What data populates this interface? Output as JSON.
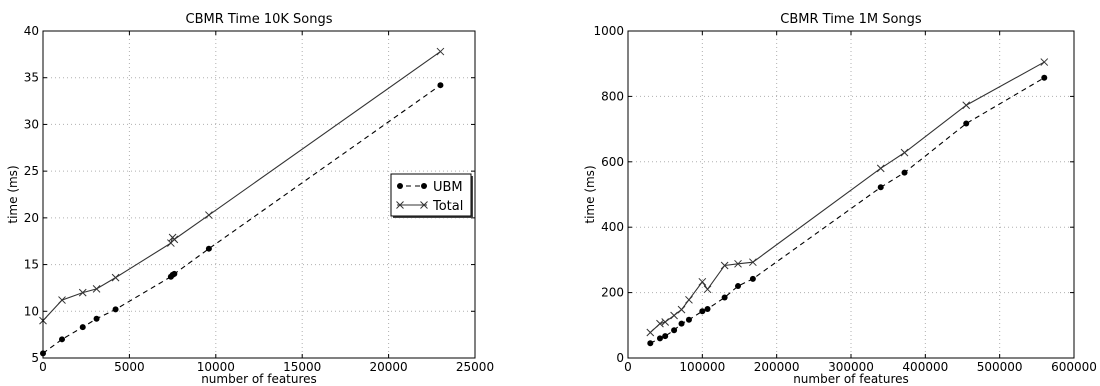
{
  "chart_data": [
    {
      "type": "line",
      "title": "CBMR Time 10K Songs",
      "xlabel": "number of features",
      "ylabel": "time (ms)",
      "xlim": [
        0,
        25000
      ],
      "ylim": [
        5,
        40
      ],
      "xticks": [
        0,
        5000,
        10000,
        15000,
        20000,
        25000
      ],
      "yticks": [
        5,
        10,
        15,
        20,
        25,
        30,
        35,
        40
      ],
      "grid": true,
      "legend": "center-right",
      "series": [
        {
          "name": "UBM",
          "style": "dashed",
          "marker": "dot",
          "color": "#000000",
          "x": [
            0,
            1100,
            2300,
            3100,
            4200,
            7400,
            7500,
            7600,
            9600,
            23000
          ],
          "y": [
            5.5,
            7.0,
            8.3,
            9.2,
            10.2,
            13.7,
            13.9,
            14.0,
            16.7,
            34.2
          ]
        },
        {
          "name": "Total",
          "style": "solid",
          "marker": "x",
          "color": "#333333",
          "x": [
            0,
            1100,
            2300,
            3100,
            4200,
            7400,
            7500,
            7600,
            9600,
            23000
          ],
          "y": [
            9.0,
            11.2,
            12.0,
            12.4,
            13.6,
            17.3,
            17.9,
            17.7,
            20.3,
            37.8
          ]
        }
      ]
    },
    {
      "type": "line",
      "title": "CBMR Time 1M Songs",
      "xlabel": "number of features",
      "ylabel": "time (ms)",
      "xlim": [
        0,
        600000
      ],
      "ylim": [
        0,
        1000
      ],
      "xticks": [
        0,
        100000,
        200000,
        300000,
        400000,
        500000,
        600000
      ],
      "yticks": [
        0,
        200,
        400,
        600,
        800,
        1000
      ],
      "grid": true,
      "series": [
        {
          "name": "UBM",
          "style": "dashed",
          "marker": "dot",
          "color": "#000000",
          "x": [
            30000,
            43000,
            50000,
            62000,
            72000,
            82000,
            100000,
            107000,
            130000,
            148000,
            168000,
            340000,
            372000,
            455000,
            560000
          ],
          "y": [
            45,
            60,
            67,
            85,
            105,
            117,
            143,
            150,
            185,
            220,
            242,
            522,
            567,
            717,
            857
          ]
        },
        {
          "name": "Total",
          "style": "solid",
          "marker": "x",
          "color": "#333333",
          "x": [
            30000,
            43000,
            50000,
            62000,
            72000,
            82000,
            100000,
            107000,
            130000,
            148000,
            168000,
            340000,
            372000,
            455000,
            560000
          ],
          "y": [
            78,
            105,
            110,
            130,
            148,
            178,
            233,
            210,
            283,
            288,
            293,
            580,
            628,
            773,
            905
          ]
        }
      ]
    }
  ]
}
